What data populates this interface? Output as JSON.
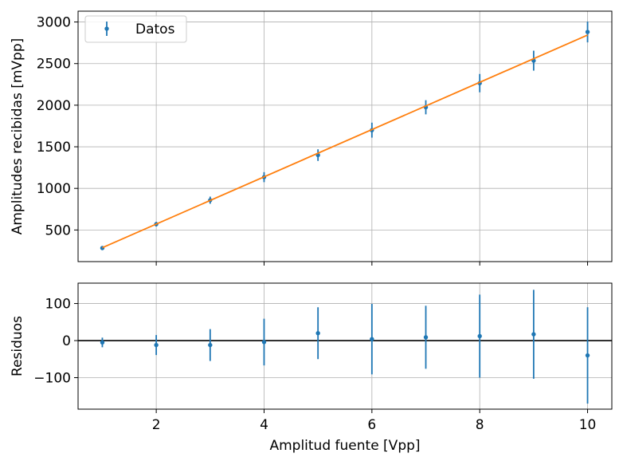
{
  "chart_data": [
    {
      "type": "scatter",
      "title": "",
      "xlabel": "",
      "ylabel": "Amplitudes recibidas [mVpp]",
      "xlim": [
        0.55,
        10.45
      ],
      "ylim": [
        120,
        3130
      ],
      "grid": true,
      "legend": {
        "placement": "top-left",
        "entries": [
          "Datos"
        ]
      },
      "x_ticks": [
        2,
        4,
        6,
        8,
        10
      ],
      "y_ticks": [
        500,
        1000,
        1500,
        2000,
        2500,
        3000
      ],
      "y_tick_labels": [
        "500",
        "1000",
        "1500",
        "2000",
        "2500",
        "3000"
      ],
      "series": [
        {
          "name": "Datos",
          "kind": "errorbar",
          "color": "#1f77b4",
          "x": [
            1,
            2,
            3,
            4,
            5,
            6,
            7,
            8,
            9,
            10
          ],
          "y": [
            283,
            570,
            858,
            1135,
            1400,
            1700,
            1975,
            2265,
            2535,
            2880
          ],
          "yerr": [
            14,
            28,
            43,
            60,
            70,
            90,
            85,
            110,
            120,
            125
          ]
        },
        {
          "kind": "fit-line",
          "color": "#ff7f0e",
          "x": [
            1,
            10
          ],
          "y": [
            287,
            2843
          ]
        }
      ]
    },
    {
      "type": "scatter",
      "title": "",
      "xlabel": "Amplitud fuente [Vpp]",
      "ylabel": "Residuos",
      "xlim": [
        0.55,
        10.45
      ],
      "ylim": [
        -185,
        155
      ],
      "grid": true,
      "x_ticks": [
        2,
        4,
        6,
        8,
        10
      ],
      "x_tick_labels": [
        "2",
        "4",
        "6",
        "8",
        "10"
      ],
      "y_ticks": [
        -100,
        0,
        100
      ],
      "y_tick_labels": [
        "−100",
        "0",
        "100"
      ],
      "reference_line": {
        "y": 0,
        "color": "#000000"
      },
      "series": [
        {
          "kind": "errorbar",
          "color": "#1f77b4",
          "x": [
            1,
            2,
            3,
            4,
            5,
            6,
            7,
            8,
            9,
            10
          ],
          "y": [
            -5,
            -12,
            -12,
            -4,
            20,
            4,
            9,
            12,
            17,
            -40
          ],
          "yerr": [
            13,
            27,
            43,
            63,
            70,
            95,
            85,
            112,
            120,
            130
          ]
        }
      ]
    }
  ]
}
